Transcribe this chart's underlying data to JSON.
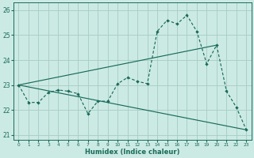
{
  "xlabel": "Humidex (Indice chaleur)",
  "bg_color": "#cceae4",
  "grid_color": "#aacfc8",
  "line_color": "#1a6b5a",
  "xlim": [
    -0.5,
    23.5
  ],
  "ylim": [
    20.8,
    26.3
  ],
  "yticks": [
    21,
    22,
    23,
    24,
    25,
    26
  ],
  "xticks": [
    0,
    1,
    2,
    3,
    4,
    5,
    6,
    7,
    8,
    9,
    10,
    11,
    12,
    13,
    14,
    15,
    16,
    17,
    18,
    19,
    20,
    21,
    22,
    23
  ],
  "line1_x": [
    0,
    1,
    2,
    3,
    4,
    5,
    6,
    7,
    8,
    9,
    10,
    11,
    12,
    13,
    14,
    15,
    16,
    17,
    18,
    19,
    20,
    21,
    22,
    23
  ],
  "line1_y": [
    23.0,
    22.3,
    22.3,
    22.7,
    22.8,
    22.75,
    22.65,
    21.85,
    22.35,
    22.35,
    23.05,
    23.3,
    23.15,
    23.05,
    25.15,
    25.6,
    25.45,
    25.8,
    25.15,
    23.85,
    24.6,
    22.75,
    22.1,
    21.2
  ],
  "line2_x": [
    0,
    20
  ],
  "line2_y": [
    23.0,
    24.6
  ],
  "line3_x": [
    0,
    23
  ],
  "line3_y": [
    23.0,
    21.2
  ]
}
